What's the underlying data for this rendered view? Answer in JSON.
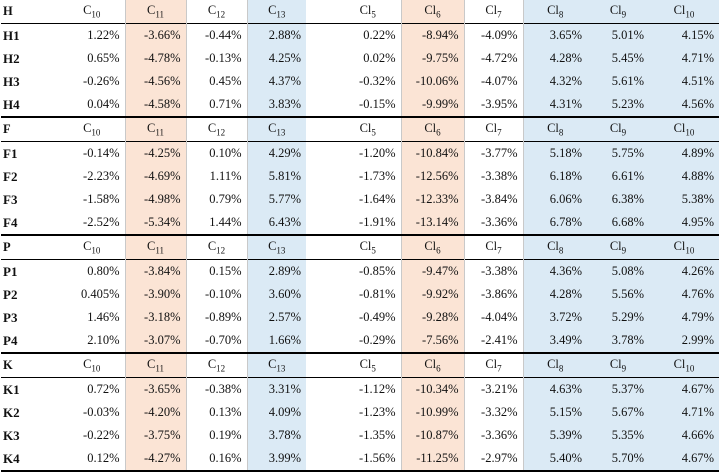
{
  "colors": {
    "orange": "#fbe4d5",
    "blue": "#dbeaf5"
  },
  "blocks": [
    {
      "header": {
        "label": "H",
        "cols": [
          "C10",
          "C11",
          "C12",
          "C13",
          "Cl5",
          "Cl6",
          "Cl7",
          "Cl8",
          "Cl9",
          "Cl10"
        ]
      },
      "rows": [
        {
          "label": "H1",
          "values": [
            "1.22%",
            "-3.66%",
            "-0.44%",
            "2.88%",
            "0.22%",
            "-8.94%",
            "-4.09%",
            "3.65%",
            "5.01%",
            "4.15%"
          ]
        },
        {
          "label": "H2",
          "values": [
            "0.65%",
            "-4.78%",
            "-0.13%",
            "4.25%",
            "0.02%",
            "-9.75%",
            "-4.72%",
            "4.28%",
            "5.45%",
            "4.71%"
          ]
        },
        {
          "label": "H3",
          "values": [
            "-0.26%",
            "-4.56%",
            "0.45%",
            "4.37%",
            "-0.32%",
            "-10.06%",
            "-4.07%",
            "4.32%",
            "5.61%",
            "4.51%"
          ]
        },
        {
          "label": "H4",
          "values": [
            "0.04%",
            "-4.58%",
            "0.71%",
            "3.83%",
            "-0.15%",
            "-9.99%",
            "-3.95%",
            "4.31%",
            "5.23%",
            "4.56%"
          ]
        }
      ]
    },
    {
      "header": {
        "label": "F",
        "cols": [
          "C10",
          "C11",
          "C12",
          "C13",
          "Cl5",
          "Cl6",
          "Cl7",
          "Cl8",
          "Cl9",
          "Cl10"
        ]
      },
      "rows": [
        {
          "label": "F1",
          "values": [
            "-0.14%",
            "-4.25%",
            "0.10%",
            "4.29%",
            "-1.20%",
            "-10.84%",
            "-3.77%",
            "5.18%",
            "5.75%",
            "4.89%"
          ]
        },
        {
          "label": "F2",
          "values": [
            "-2.23%",
            "-4.69%",
            "1.11%",
            "5.81%",
            "-1.73%",
            "-12.56%",
            "-3.38%",
            "6.18%",
            "6.61%",
            "4.88%"
          ]
        },
        {
          "label": "F3",
          "values": [
            "-1.58%",
            "-4.98%",
            "0.79%",
            "5.77%",
            "-1.64%",
            "-12.33%",
            "-3.84%",
            "6.06%",
            "6.38%",
            "5.38%"
          ]
        },
        {
          "label": "F4",
          "values": [
            "-2.52%",
            "-5.34%",
            "1.44%",
            "6.43%",
            "-1.91%",
            "-13.14%",
            "-3.36%",
            "6.78%",
            "6.68%",
            "4.95%"
          ]
        }
      ]
    },
    {
      "header": {
        "label": "P",
        "cols": [
          "C10",
          "C11",
          "C12",
          "C13",
          "Cl5",
          "Cl6",
          "Cl7",
          "Cl8",
          "Cl9",
          "Cl10"
        ]
      },
      "rows": [
        {
          "label": "P1",
          "values": [
            "0.80%",
            "-3.84%",
            "0.15%",
            "2.89%",
            "-0.85%",
            "-9.47%",
            "-3.38%",
            "4.36%",
            "5.08%",
            "4.26%"
          ]
        },
        {
          "label": "P2",
          "values": [
            "0.405%",
            "-3.90%",
            "-0.10%",
            "3.60%",
            "-0.81%",
            "-9.92%",
            "-3.86%",
            "4.28%",
            "5.56%",
            "4.76%"
          ]
        },
        {
          "label": "P3",
          "values": [
            "1.46%",
            "-3.18%",
            "-0.89%",
            "2.57%",
            "-0.49%",
            "-9.28%",
            "-4.04%",
            "3.72%",
            "5.29%",
            "4.79%"
          ]
        },
        {
          "label": "P4",
          "values": [
            "2.10%",
            "-3.07%",
            "-0.70%",
            "1.66%",
            "-0.29%",
            "-7.56%",
            "-2.41%",
            "3.49%",
            "3.78%",
            "2.99%"
          ]
        }
      ]
    },
    {
      "header": {
        "label": "K",
        "cols": [
          "C10",
          "C11",
          "C12",
          "C13",
          "Cl5",
          "Cl6",
          "Cl7",
          "Cl8",
          "Cl9",
          "Cl10"
        ]
      },
      "rows": [
        {
          "label": "K1",
          "values": [
            "0.72%",
            "-3.65%",
            "-0.38%",
            "3.31%",
            "-1.12%",
            "-10.34%",
            "-3.21%",
            "4.63%",
            "5.37%",
            "4.67%"
          ]
        },
        {
          "label": "K2",
          "values": [
            "-0.03%",
            "-4.20%",
            "0.13%",
            "4.09%",
            "-1.23%",
            "-10.99%",
            "-3.32%",
            "5.15%",
            "5.67%",
            "4.71%"
          ]
        },
        {
          "label": "K3",
          "values": [
            "-0.22%",
            "-3.75%",
            "0.19%",
            "3.78%",
            "-1.35%",
            "-10.87%",
            "-3.36%",
            "5.39%",
            "5.35%",
            "4.66%"
          ]
        },
        {
          "label": "K4",
          "values": [
            "0.12%",
            "-4.27%",
            "0.16%",
            "3.99%",
            "-1.56%",
            "-11.25%",
            "-2.97%",
            "5.40%",
            "5.70%",
            "4.67%"
          ]
        }
      ]
    }
  ]
}
